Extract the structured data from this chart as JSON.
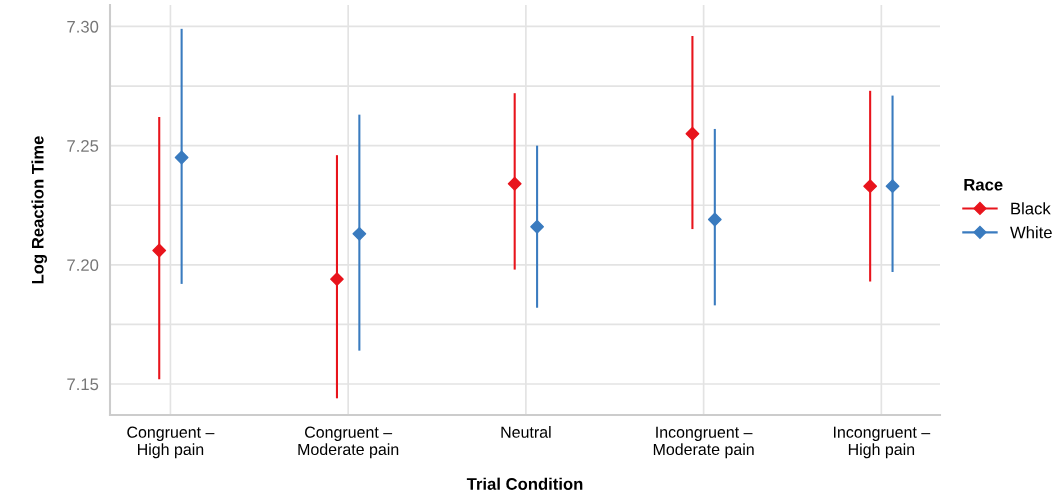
{
  "chart_data": {
    "type": "scatter",
    "xlabel": "Trial Condition",
    "ylabel": "Log Reaction Time",
    "legend_title": "Race",
    "categories": [
      "Congruent –\nHigh pain",
      "Congruent –\nModerate pain",
      "Neutral",
      "Incongruent –\nModerate pain",
      "Incongruent –\nHigh pain"
    ],
    "series": [
      {
        "name": "Black",
        "color": "#e8141c",
        "values": [
          7.206,
          7.194,
          7.234,
          7.255,
          7.233
        ],
        "errors": [
          [
            7.152,
            7.262
          ],
          [
            7.144,
            7.246
          ],
          [
            7.198,
            7.272
          ],
          [
            7.215,
            7.296
          ],
          [
            7.193,
            7.273
          ]
        ]
      },
      {
        "name": "White",
        "color": "#3a7bbf",
        "values": [
          7.245,
          7.213,
          7.216,
          7.219,
          7.233
        ],
        "errors": [
          [
            7.192,
            7.299
          ],
          [
            7.164,
            7.263
          ],
          [
            7.182,
            7.25
          ],
          [
            7.183,
            7.257
          ],
          [
            7.197,
            7.271
          ]
        ]
      }
    ],
    "ylim": [
      7.137,
      7.309
    ],
    "yticks": [
      7.15,
      {
        "value": 7.175,
        "label": null
      },
      {
        "value": 7.2,
        "label": "7.20"
      },
      {
        "value": 7.225,
        "label": null
      },
      7.25,
      {
        "value": 7.275,
        "label": null
      },
      {
        "value": 7.3,
        "label": "7.30"
      }
    ],
    "grid": true,
    "legend": "right",
    "marker": "diamond"
  }
}
